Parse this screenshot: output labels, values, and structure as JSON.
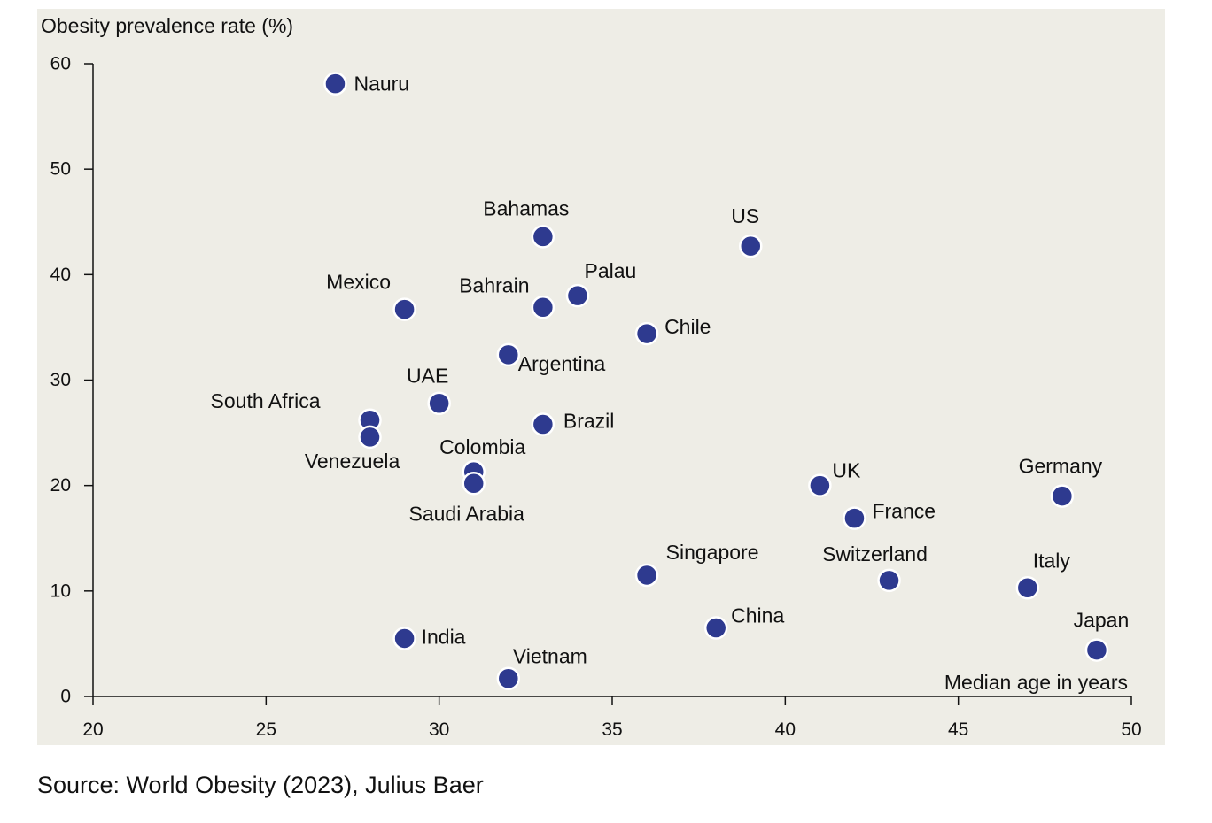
{
  "chart_data": {
    "type": "scatter",
    "ylabel": "Obesity prevalence rate (%)",
    "xlabel": "Median age in years",
    "xlim": [
      20,
      50
    ],
    "ylim": [
      0,
      60
    ],
    "xticks": [
      20,
      25,
      30,
      35,
      40,
      45,
      50
    ],
    "yticks": [
      0,
      10,
      20,
      30,
      40,
      50,
      60
    ],
    "grid": false,
    "colors": {
      "marker": "#2E3A8F",
      "background": "#EEEDE6"
    },
    "points": [
      {
        "label": "Nauru",
        "x": 27,
        "y": 58.1
      },
      {
        "label": "Bahamas",
        "x": 33,
        "y": 43.6
      },
      {
        "label": "US",
        "x": 39,
        "y": 42.7
      },
      {
        "label": "Mexico",
        "x": 29,
        "y": 36.7
      },
      {
        "label": "Bahrain",
        "x": 33,
        "y": 36.9
      },
      {
        "label": "Palau",
        "x": 34,
        "y": 38.0
      },
      {
        "label": "Chile",
        "x": 36,
        "y": 34.4
      },
      {
        "label": "Argentina",
        "x": 32,
        "y": 32.4
      },
      {
        "label": "UAE",
        "x": 30,
        "y": 27.8
      },
      {
        "label": "South Africa",
        "x": 28,
        "y": 26.2
      },
      {
        "label": "Venezuela",
        "x": 28,
        "y": 24.6
      },
      {
        "label": "Brazil",
        "x": 33,
        "y": 25.8
      },
      {
        "label": "Colombia",
        "x": 31,
        "y": 21.3
      },
      {
        "label": "Saudi Arabia",
        "x": 31,
        "y": 20.2
      },
      {
        "label": "UK",
        "x": 41,
        "y": 20.0
      },
      {
        "label": "France",
        "x": 42,
        "y": 16.9
      },
      {
        "label": "Germany",
        "x": 48,
        "y": 19.0
      },
      {
        "label": "Singapore",
        "x": 36,
        "y": 11.5
      },
      {
        "label": "Switzerland",
        "x": 43,
        "y": 11.0
      },
      {
        "label": "Italy",
        "x": 47,
        "y": 10.3
      },
      {
        "label": "China",
        "x": 38,
        "y": 6.5
      },
      {
        "label": "India",
        "x": 29,
        "y": 5.5
      },
      {
        "label": "Japan",
        "x": 49,
        "y": 4.4
      },
      {
        "label": "Vietnam",
        "x": 32,
        "y": 1.7
      }
    ]
  },
  "source": "Source: World Obesity (2023), Julius Baer"
}
